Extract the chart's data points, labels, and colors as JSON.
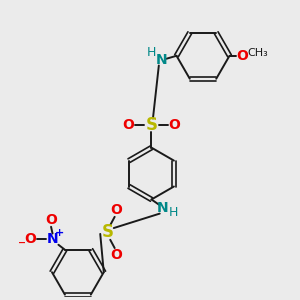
{
  "bg_color": "#ebebeb",
  "bond_color": "#1a1a1a",
  "S_color": "#b8b800",
  "O_color": "#ee0000",
  "N_color": "#008888",
  "N2_color": "#0000ee",
  "plus_color": "#0000ee",
  "minus_color": "#ee0000",
  "C_color": "#1a1a1a",
  "figsize": [
    3.0,
    3.0
  ],
  "dpi": 100,
  "xlim": [
    0,
    10
  ],
  "ylim": [
    0,
    10
  ]
}
